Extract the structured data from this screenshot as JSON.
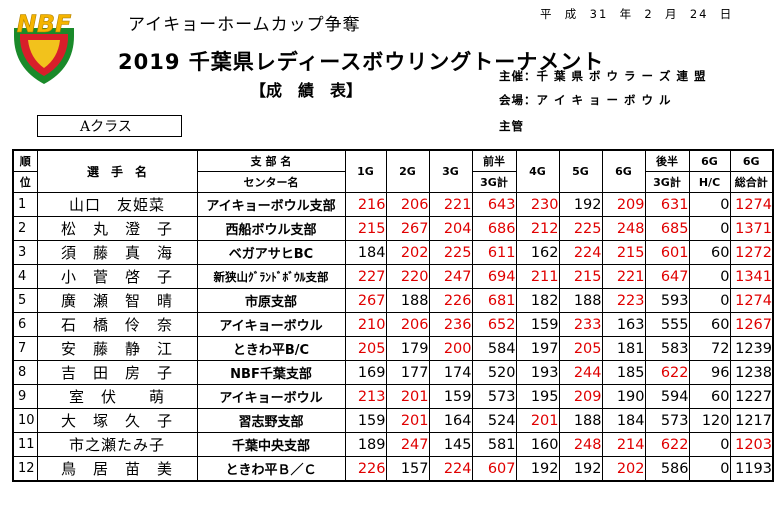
{
  "header": {
    "logo_text": "NBF",
    "cup_title": "アイキョーホームカップ争奪",
    "date": "平  成  31  年  2  月  24  日",
    "main_title": "2019  千葉県レディースボウリングトーナメント",
    "subtitle": "【成　績　表】",
    "organizer_label": "主催：",
    "organizer": "千 葉 県 ボ ウ ラ ー ズ 連 盟",
    "venue_label": "会場：",
    "venue": "ア イ キ ョ ー ボ ウ ル",
    "sponsor_label": "主管",
    "class_label": "Aクラス"
  },
  "columns": {
    "rank_top": "順",
    "rank_bottom": "位",
    "player": "選　手　名",
    "branch_top": "支 部 名",
    "branch_bottom": "センター名",
    "g1": "1G",
    "g2": "2G",
    "g3": "3G",
    "first_half_top": "前半",
    "first_half_bottom": "3G計",
    "g4": "4G",
    "g5": "5G",
    "g6": "6G",
    "second_half_top": "後半",
    "second_half_bottom": "3G計",
    "hc_top": "6G",
    "hc_bottom": "H/C",
    "total_top": "6G",
    "total_bottom": "総合計"
  },
  "colors": {
    "highlight": "#e00000",
    "normal": "#000000"
  },
  "rows": [
    {
      "rank": "1",
      "name": "山口　友姫菜",
      "branch": "アイキョーボウル支部",
      "scores": [
        "216",
        "206",
        "221",
        "643",
        "230",
        "192",
        "209",
        "631",
        "0",
        "1274"
      ],
      "red": [
        1,
        1,
        1,
        1,
        1,
        0,
        1,
        1,
        0,
        1
      ]
    },
    {
      "rank": "2",
      "name": "松　丸　澄　子",
      "branch": "西船ボウル支部",
      "scores": [
        "215",
        "267",
        "204",
        "686",
        "212",
        "225",
        "248",
        "685",
        "0",
        "1371"
      ],
      "red": [
        1,
        1,
        1,
        1,
        1,
        1,
        1,
        1,
        0,
        1
      ]
    },
    {
      "rank": "3",
      "name": "須　藤　真　海",
      "branch": "ベガアサヒBC",
      "scores": [
        "184",
        "202",
        "225",
        "611",
        "162",
        "224",
        "215",
        "601",
        "60",
        "1272"
      ],
      "red": [
        0,
        1,
        1,
        1,
        0,
        1,
        1,
        1,
        0,
        1
      ]
    },
    {
      "rank": "4",
      "name": "小　菅　啓　子",
      "branch": "新狭山ｸﾞﾗﾝﾄﾞﾎﾞｳﾙ支部",
      "scores": [
        "227",
        "220",
        "247",
        "694",
        "211",
        "215",
        "221",
        "647",
        "0",
        "1341"
      ],
      "red": [
        1,
        1,
        1,
        1,
        1,
        1,
        1,
        1,
        0,
        1
      ]
    },
    {
      "rank": "5",
      "name": "廣　瀬　智　晴",
      "branch": "市原支部",
      "scores": [
        "267",
        "188",
        "226",
        "681",
        "182",
        "188",
        "223",
        "593",
        "0",
        "1274"
      ],
      "red": [
        1,
        0,
        1,
        1,
        0,
        0,
        1,
        0,
        0,
        1
      ]
    },
    {
      "rank": "6",
      "name": "石　橋　伶　奈",
      "branch": "アイキョーボウル",
      "scores": [
        "210",
        "206",
        "236",
        "652",
        "159",
        "233",
        "163",
        "555",
        "60",
        "1267"
      ],
      "red": [
        1,
        1,
        1,
        1,
        0,
        1,
        0,
        0,
        0,
        1
      ]
    },
    {
      "rank": "7",
      "name": "安　藤　静　江",
      "branch": "ときわ平B/C",
      "scores": [
        "205",
        "179",
        "200",
        "584",
        "197",
        "205",
        "181",
        "583",
        "72",
        "1239"
      ],
      "red": [
        1,
        0,
        1,
        0,
        0,
        1,
        0,
        0,
        0,
        0
      ]
    },
    {
      "rank": "8",
      "name": "吉　田　房　子",
      "branch": "NBF千葉支部",
      "scores": [
        "169",
        "177",
        "174",
        "520",
        "193",
        "244",
        "185",
        "622",
        "96",
        "1238"
      ],
      "red": [
        0,
        0,
        0,
        0,
        0,
        1,
        0,
        1,
        0,
        0
      ]
    },
    {
      "rank": "9",
      "name": "室　伏　　萌",
      "branch": "アイキョーボウル",
      "scores": [
        "213",
        "201",
        "159",
        "573",
        "195",
        "209",
        "190",
        "594",
        "60",
        "1227"
      ],
      "red": [
        1,
        1,
        0,
        0,
        0,
        1,
        0,
        0,
        0,
        0
      ]
    },
    {
      "rank": "10",
      "name": "大　塚　久　子",
      "branch": "習志野支部",
      "scores": [
        "159",
        "201",
        "164",
        "524",
        "201",
        "188",
        "184",
        "573",
        "120",
        "1217"
      ],
      "red": [
        0,
        1,
        0,
        0,
        1,
        0,
        0,
        0,
        0,
        0
      ]
    },
    {
      "rank": "11",
      "name": "市之瀬たみ子",
      "branch": "千葉中央支部",
      "scores": [
        "189",
        "247",
        "145",
        "581",
        "160",
        "248",
        "214",
        "622",
        "0",
        "1203"
      ],
      "red": [
        0,
        1,
        0,
        0,
        0,
        1,
        1,
        1,
        0,
        1
      ]
    },
    {
      "rank": "12",
      "name": "鳥　居　苗　美",
      "branch": "ときわ平Ｂ／Ｃ",
      "scores": [
        "226",
        "157",
        "224",
        "607",
        "192",
        "192",
        "202",
        "586",
        "0",
        "1193"
      ],
      "red": [
        1,
        0,
        1,
        1,
        0,
        0,
        1,
        0,
        0,
        0
      ]
    }
  ]
}
